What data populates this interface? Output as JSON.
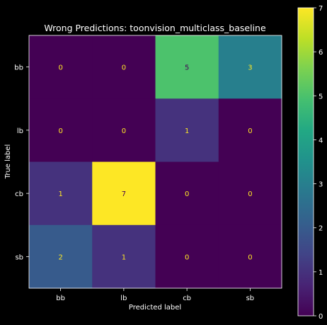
{
  "chart_data": {
    "type": "heatmap",
    "title": "Wrong Predictions: toonvision_multiclass_baseline",
    "xlabel": "Predicted label",
    "ylabel": "True label",
    "x_categories": [
      "bb",
      "lb",
      "cb",
      "sb"
    ],
    "y_categories": [
      "bb",
      "lb",
      "cb",
      "sb"
    ],
    "values": [
      [
        0,
        0,
        5,
        3
      ],
      [
        0,
        0,
        1,
        0
      ],
      [
        1,
        7,
        0,
        0
      ],
      [
        2,
        1,
        0,
        0
      ]
    ],
    "colorscale": "viridis",
    "vmin": 0,
    "vmax": 7,
    "colorbar_ticks": [
      "0",
      "1",
      "2",
      "3",
      "4",
      "5",
      "6",
      "7"
    ],
    "grid": false
  },
  "colors": {
    "background": "#000000",
    "text": "#ffffff",
    "label_on_dark": "#fde725",
    "label_on_light": "#440154"
  }
}
